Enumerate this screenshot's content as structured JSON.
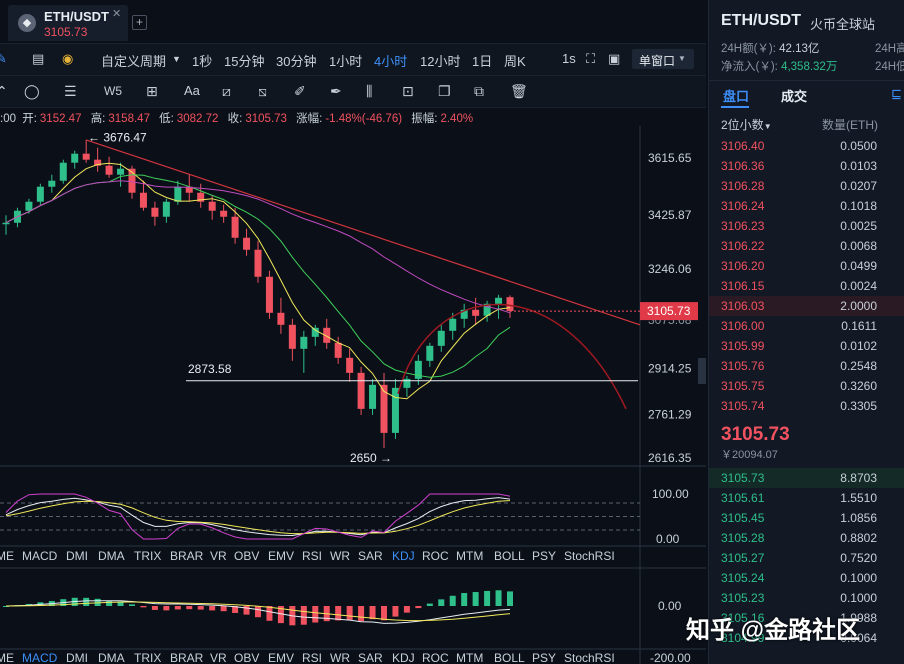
{
  "tab": {
    "icon": "eth-icon",
    "symbol": "ETH/USDT",
    "price": "3105.73"
  },
  "period_bar": {
    "custom_period": "自定义周期",
    "periods": [
      "1秒",
      "15分钟",
      "30分钟",
      "1小时",
      "4小时",
      "12小时",
      "1日",
      "周K"
    ],
    "active_period": "4小时",
    "interval": "1s",
    "window_mode": "单窗口"
  },
  "ohlc": {
    "time": ":00",
    "open_label": "开:",
    "open": "3152.47",
    "high_label": "高:",
    "high": "3158.47",
    "low_label": "低:",
    "low": "3082.72",
    "close_label": "收:",
    "close": "3105.73",
    "change_label": "涨幅:",
    "change": "-1.48%(-46.76)",
    "amp_label": "振幅:",
    "amp": "2.40%"
  },
  "chart_data": {
    "type": "candlestick",
    "y_ticks": [
      "3615.65",
      "3425.87",
      "3246.06",
      "3105.73",
      "3075.68",
      "2914.25",
      "2761.29",
      "2616.35"
    ],
    "annotations": {
      "high": "3676.47",
      "low": "2650",
      "support": "2873.58",
      "current": "3105.73"
    },
    "candles": [
      [
        3395,
        3425,
        3360,
        3400
      ],
      [
        3400,
        3450,
        3385,
        3440
      ],
      [
        3440,
        3480,
        3430,
        3470
      ],
      [
        3470,
        3530,
        3460,
        3520
      ],
      [
        3520,
        3560,
        3500,
        3540
      ],
      [
        3540,
        3610,
        3530,
        3600
      ],
      [
        3600,
        3640,
        3580,
        3630
      ],
      [
        3630,
        3676,
        3600,
        3610
      ],
      [
        3610,
        3650,
        3570,
        3590
      ],
      [
        3590,
        3620,
        3550,
        3560
      ],
      [
        3560,
        3600,
        3520,
        3580
      ],
      [
        3580,
        3590,
        3480,
        3500
      ],
      [
        3500,
        3540,
        3440,
        3450
      ],
      [
        3450,
        3470,
        3390,
        3420
      ],
      [
        3420,
        3480,
        3400,
        3470
      ],
      [
        3470,
        3540,
        3460,
        3520
      ],
      [
        3520,
        3560,
        3470,
        3500
      ],
      [
        3500,
        3530,
        3450,
        3470
      ],
      [
        3470,
        3490,
        3410,
        3440
      ],
      [
        3440,
        3460,
        3400,
        3420
      ],
      [
        3420,
        3450,
        3330,
        3350
      ],
      [
        3350,
        3380,
        3290,
        3310
      ],
      [
        3310,
        3340,
        3200,
        3220
      ],
      [
        3220,
        3240,
        3080,
        3100
      ],
      [
        3100,
        3150,
        3030,
        3060
      ],
      [
        3060,
        3080,
        2940,
        2980
      ],
      [
        2980,
        3040,
        2900,
        3020
      ],
      [
        3020,
        3060,
        2990,
        3050
      ],
      [
        3050,
        3080,
        2980,
        3000
      ],
      [
        3000,
        3020,
        2930,
        2950
      ],
      [
        2950,
        2980,
        2870,
        2900
      ],
      [
        2900,
        2920,
        2760,
        2780
      ],
      [
        2780,
        2880,
        2760,
        2860
      ],
      [
        2860,
        2900,
        2650,
        2700
      ],
      [
        2700,
        2880,
        2680,
        2850
      ],
      [
        2850,
        2890,
        2820,
        2880
      ],
      [
        2880,
        2960,
        2860,
        2940
      ],
      [
        2940,
        3000,
        2920,
        2990
      ],
      [
        2990,
        3060,
        2970,
        3040
      ],
      [
        3040,
        3100,
        3010,
        3080
      ],
      [
        3080,
        3130,
        3050,
        3110
      ],
      [
        3110,
        3150,
        3060,
        3090
      ],
      [
        3090,
        3140,
        3070,
        3130
      ],
      [
        3130,
        3160,
        3080,
        3150
      ],
      [
        3152,
        3158,
        3083,
        3106
      ]
    ],
    "indicator_tabs": [
      "ME",
      "MACD",
      "DMI",
      "DMA",
      "TRIX",
      "BRAR",
      "VR",
      "OBV",
      "EMV",
      "RSI",
      "WR",
      "SAR",
      "KDJ",
      "ROC",
      "MTM",
      "BOLL",
      "PSY",
      "StochRSI"
    ],
    "active_indicator_tab_1": "KDJ",
    "active_indicator_tab_2": "MACD",
    "kdj_ticks": [
      "100.00",
      "0.00"
    ],
    "macd_ticks": [
      "0.00",
      "-200.00"
    ]
  },
  "right_panel": {
    "symbol": "ETH/USDT",
    "exchange": "火币全球站",
    "vol_label": "24H额(￥):",
    "vol": "42.13亿",
    "high_label_short": "24H高",
    "netflow_label": "净流入(￥):",
    "netflow": "4,358.32万",
    "low_label_short": "24H低",
    "tab_orderbook": "盘口",
    "tab_trades": "成交",
    "precision": "2位小数",
    "qty_header": "数量(ETH)",
    "asks": [
      [
        "3106.40",
        "0.0500"
      ],
      [
        "3106.36",
        "0.0103"
      ],
      [
        "3106.28",
        "0.0207"
      ],
      [
        "3106.24",
        "0.1018"
      ],
      [
        "3106.23",
        "0.0025"
      ],
      [
        "3106.22",
        "0.0068"
      ],
      [
        "3106.20",
        "0.0499"
      ],
      [
        "3106.15",
        "0.0024"
      ],
      [
        "3106.03",
        "2.0000"
      ],
      [
        "3106.00",
        "0.1611"
      ],
      [
        "3105.99",
        "0.0102"
      ],
      [
        "3105.76",
        "0.2548"
      ],
      [
        "3105.75",
        "0.3260"
      ],
      [
        "3105.74",
        "0.3305"
      ]
    ],
    "last_price": "3105.73",
    "last_price_cny": "￥20094.07",
    "bids": [
      [
        "3105.73",
        "8.8703"
      ],
      [
        "3105.61",
        "1.5510"
      ],
      [
        "3105.45",
        "1.0856"
      ],
      [
        "3105.28",
        "0.8802"
      ],
      [
        "3105.27",
        "0.7520"
      ],
      [
        "3105.24",
        "0.1000"
      ],
      [
        "3105.23",
        "0.1000"
      ],
      [
        "3105.16",
        "1.9988"
      ],
      [
        "3104.99",
        "0.0064"
      ]
    ]
  },
  "watermark": "知乎 @金路社区",
  "colors": {
    "up": "#2ebf8a",
    "down": "#f0525f",
    "accent": "#3d8ef7",
    "trendline": "#d0343c"
  }
}
